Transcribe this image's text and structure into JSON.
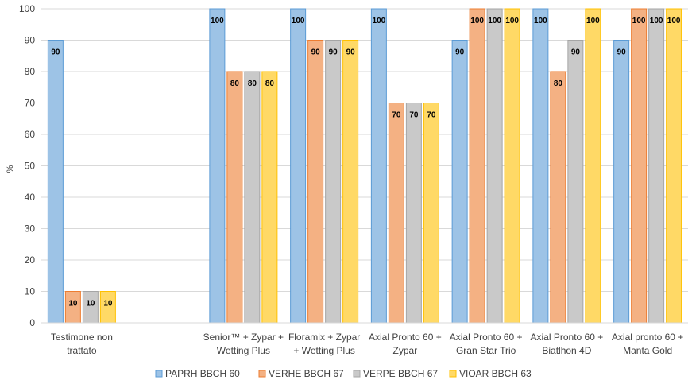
{
  "chart_data": {
    "type": "bar",
    "title": "",
    "ylabel": "%",
    "xlabel": "",
    "ylim": [
      0,
      100
    ],
    "yticks": [
      0,
      10,
      20,
      30,
      40,
      50,
      60,
      70,
      80,
      90,
      100
    ],
    "grid": true,
    "legend_position": "bottom",
    "categories": [
      [
        "Testimone non",
        "trattato"
      ],
      [],
      [
        "Senior™ + Zypar +",
        "Wetting Plus"
      ],
      [
        "Floramix + Zypar",
        "+ Wetting Plus"
      ],
      [
        "Axial Pronto 60 +",
        "Zypar"
      ],
      [
        "Axial Pronto 60 +",
        "Gran Star Trio"
      ],
      [
        "Axial Pronto 60 +",
        "Biatlhon 4D"
      ],
      [
        "Axial pronto 60 +",
        "Manta Gold"
      ]
    ],
    "series": [
      {
        "name": "PAPRH BBCH 60",
        "color": "#9DC3E6",
        "stroke": "#5B9BD5",
        "values": [
          90,
          null,
          100,
          100,
          100,
          90,
          100,
          90
        ]
      },
      {
        "name": "VERHE BBCH 67",
        "color": "#F4B183",
        "stroke": "#ED7D31",
        "values": [
          10,
          null,
          80,
          90,
          70,
          100,
          80,
          100
        ]
      },
      {
        "name": "VERPE BBCH 67",
        "color": "#C9C9C9",
        "stroke": "#A5A5A5",
        "values": [
          10,
          null,
          80,
          90,
          70,
          100,
          90,
          100
        ]
      },
      {
        "name": "VIOAR BBCH 63",
        "color": "#FFD966",
        "stroke": "#FFC000",
        "values": [
          10,
          null,
          80,
          90,
          70,
          100,
          100,
          100
        ]
      }
    ]
  }
}
